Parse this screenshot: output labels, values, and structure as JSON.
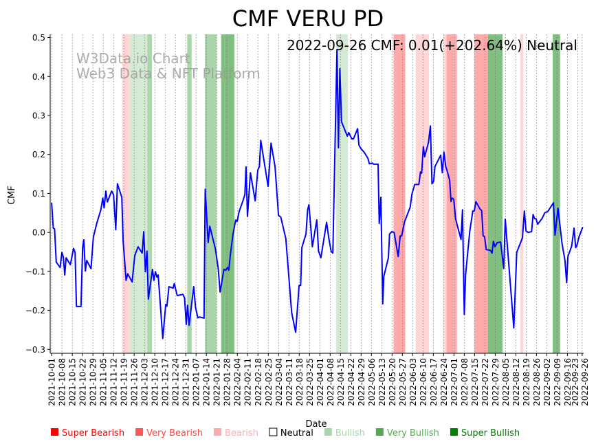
{
  "chart_data": {
    "type": "line",
    "title": "CMF VERU PD",
    "xlabel": "Date",
    "ylabel": "CMF",
    "annotation": "2022-09-26 CMF: 0.01(+202.64%) Neutral",
    "watermark": [
      "W3Data.io Chart",
      "Web3 Data & NFT Platform"
    ],
    "x_unit": "days since 2021-10-01",
    "day0": "2021-10-01",
    "xlim": [
      -1,
      361
    ],
    "ylim": [
      -0.31,
      0.508
    ],
    "yticks": [
      -0.3,
      -0.2,
      -0.1,
      0.0,
      0.1,
      0.2,
      0.3,
      0.4,
      0.5
    ],
    "ytick_labels": [
      "−0.3",
      "−0.2",
      "−0.1",
      "0.0",
      "0.1",
      "0.2",
      "0.3",
      "0.4",
      "0.5"
    ],
    "xtick_labels": [
      "2021-10-01",
      "2021-10-08",
      "2021-10-15",
      "2021-10-22",
      "2021-10-29",
      "2021-11-05",
      "2021-11-12",
      "2021-11-19",
      "2021-11-26",
      "2021-12-03",
      "2021-12-10",
      "2021-12-17",
      "2021-12-24",
      "2021-12-31",
      "2022-01-07",
      "2022-01-14",
      "2022-01-21",
      "2022-01-28",
      "2022-02-04",
      "2022-02-11",
      "2022-02-18",
      "2022-02-25",
      "2022-03-04",
      "2022-03-11",
      "2022-03-18",
      "2022-03-25",
      "2022-04-01",
      "2022-04-08",
      "2022-04-15",
      "2022-04-22",
      "2022-04-29",
      "2022-05-06",
      "2022-05-13",
      "2022-05-20",
      "2022-05-27",
      "2022-06-03",
      "2022-06-10",
      "2022-06-17",
      "2022-06-24",
      "2022-07-01",
      "2022-07-08",
      "2022-07-15",
      "2022-07-22",
      "2022-07-29",
      "2022-08-05",
      "2022-08-12",
      "2022-08-19",
      "2022-08-26",
      "2022-09-02",
      "2022-09-09",
      "2022-09-16",
      "2022-09-23",
      "2022-09-26"
    ],
    "grid": "vertical dotted at x ticks",
    "legend_position": "bottom",
    "legend": [
      {
        "label": "Super Bearish",
        "color": "#ff0000",
        "text_color": "#ff0000"
      },
      {
        "label": "Very Bearish",
        "color": "#ff5555",
        "text_color": "#ff4444"
      },
      {
        "label": "Bearish",
        "color": "#ffaaaa",
        "text_color": "#ffaaaa"
      },
      {
        "label": "Neutral",
        "color": "#ffffff",
        "text_color": "#000000"
      },
      {
        "label": "Bullish",
        "color": "#aad4aa",
        "text_color": "#aad4aa"
      },
      {
        "label": "Very Bullish",
        "color": "#55aa55",
        "text_color": "#55aa55"
      },
      {
        "label": "Super Bullish",
        "color": "#008000",
        "text_color": "#008000"
      }
    ],
    "band_colors": {
      "bearish": "#ffd5d5",
      "very_bearish": "#ffaaaa",
      "bullish": "#d5ead5",
      "very_bullish": "#aad5aa",
      "super_bullish": "#80bf80"
    },
    "bands": [
      {
        "start": 48,
        "end": 53,
        "level": "bearish"
      },
      {
        "start": 53,
        "end": 65,
        "level": "bullish"
      },
      {
        "start": 65,
        "end": 68,
        "level": "very_bullish"
      },
      {
        "start": 92,
        "end": 95,
        "level": "very_bullish"
      },
      {
        "start": 104,
        "end": 112,
        "level": "very_bullish"
      },
      {
        "start": 115,
        "end": 124,
        "level": "super_bullish"
      },
      {
        "start": 193,
        "end": 201,
        "level": "bullish"
      },
      {
        "start": 232,
        "end": 240,
        "level": "very_bearish"
      },
      {
        "start": 247,
        "end": 256,
        "level": "bearish"
      },
      {
        "start": 266,
        "end": 268,
        "level": "bearish"
      },
      {
        "start": 268,
        "end": 275,
        "level": "very_bearish"
      },
      {
        "start": 287,
        "end": 296,
        "level": "very_bearish"
      },
      {
        "start": 296,
        "end": 306,
        "level": "super_bullish"
      },
      {
        "start": 318,
        "end": 320,
        "level": "bearish"
      },
      {
        "start": 340,
        "end": 345,
        "level": "super_bullish"
      }
    ],
    "line_color": "#0000ff",
    "series": [
      {
        "name": "CMF",
        "points": [
          [
            0,
            0.076
          ],
          [
            1.1,
            0.011
          ],
          [
            2.0,
            0.009
          ],
          [
            3.1,
            -0.076
          ],
          [
            5.7,
            -0.09
          ],
          [
            7.0,
            -0.051
          ],
          [
            7.9,
            -0.063
          ],
          [
            8.9,
            -0.109
          ],
          [
            9.8,
            -0.065
          ],
          [
            12.7,
            -0.083
          ],
          [
            14.8,
            -0.041
          ],
          [
            15.9,
            -0.051
          ],
          [
            16.8,
            -0.19
          ],
          [
            19.9,
            -0.19
          ],
          [
            21.0,
            -0.039
          ],
          [
            21.8,
            -0.019
          ],
          [
            22.9,
            -0.099
          ],
          [
            23.8,
            -0.072
          ],
          [
            26.7,
            -0.093
          ],
          [
            28.3,
            -0.012
          ],
          [
            30.6,
            0.023
          ],
          [
            33.4,
            0.058
          ],
          [
            34.7,
            0.088
          ],
          [
            35.6,
            0.063
          ],
          [
            36.8,
            0.106
          ],
          [
            37.8,
            0.078
          ],
          [
            40.7,
            0.106
          ],
          [
            42.0,
            0.097
          ],
          [
            43.5,
            0.007
          ],
          [
            44.6,
            0.125
          ],
          [
            47.6,
            0.09
          ],
          [
            48.5,
            -0.021
          ],
          [
            50.5,
            -0.123
          ],
          [
            51.6,
            -0.106
          ],
          [
            54.6,
            -0.127
          ],
          [
            56.4,
            -0.06
          ],
          [
            58.6,
            -0.037
          ],
          [
            61.4,
            -0.053
          ],
          [
            62.5,
            0.002
          ],
          [
            63.6,
            -0.101
          ],
          [
            64.7,
            -0.048
          ],
          [
            65.6,
            -0.171
          ],
          [
            68.4,
            -0.095
          ],
          [
            69.4,
            -0.123
          ],
          [
            70.4,
            -0.101
          ],
          [
            71.5,
            -0.115
          ],
          [
            72.3,
            -0.109
          ],
          [
            75.4,
            -0.272
          ],
          [
            77.4,
            -0.185
          ],
          [
            78.2,
            -0.189
          ],
          [
            79.6,
            -0.139
          ],
          [
            82.4,
            -0.143
          ],
          [
            83.2,
            -0.131
          ],
          [
            85.2,
            -0.162
          ],
          [
            89.1,
            -0.159
          ],
          [
            90.2,
            -0.168
          ],
          [
            91.3,
            -0.236
          ],
          [
            92.2,
            -0.187
          ],
          [
            93.3,
            -0.238
          ],
          [
            96.4,
            -0.139
          ],
          [
            97.6,
            -0.192
          ],
          [
            99.2,
            -0.219
          ],
          [
            100.3,
            -0.217
          ],
          [
            103.4,
            -0.22
          ],
          [
            104.2,
            0.111
          ],
          [
            106.2,
            -0.026
          ],
          [
            107.3,
            0.016
          ],
          [
            111.1,
            -0.042
          ],
          [
            113.0,
            -0.092
          ],
          [
            114.3,
            -0.153
          ],
          [
            116.9,
            -0.095
          ],
          [
            118.1,
            -0.097
          ],
          [
            119.3,
            -0.09
          ],
          [
            120.2,
            -0.097
          ],
          [
            121.3,
            -0.056
          ],
          [
            123.1,
            -0.004
          ],
          [
            124.9,
            0.032
          ],
          [
            125.9,
            0.028
          ],
          [
            127.2,
            0.053
          ],
          [
            129.8,
            0.081
          ],
          [
            131.1,
            0.097
          ],
          [
            131.9,
            0.168
          ],
          [
            132.9,
            0.041
          ],
          [
            134.9,
            0.153
          ],
          [
            138.1,
            0.081
          ],
          [
            139.9,
            0.16
          ],
          [
            141.0,
            0.169
          ],
          [
            141.9,
            0.236
          ],
          [
            146.9,
            0.118
          ],
          [
            148.9,
            0.229
          ],
          [
            151.6,
            0.169
          ],
          [
            153.9,
            0.044
          ],
          [
            155.5,
            0.039
          ],
          [
            158.9,
            -0.016
          ],
          [
            162.9,
            -0.206
          ],
          [
            165.6,
            -0.256
          ],
          [
            167.9,
            -0.136
          ],
          [
            169.0,
            -0.136
          ],
          [
            169.8,
            -0.039
          ],
          [
            172.6,
            -0.004
          ],
          [
            173.7,
            0.058
          ],
          [
            174.6,
            0.071
          ],
          [
            176.9,
            -0.037
          ],
          [
            179.9,
            0.032
          ],
          [
            181.1,
            -0.048
          ],
          [
            182.7,
            -0.065
          ],
          [
            186.6,
            0.026
          ],
          [
            188.1,
            -0.016
          ],
          [
            189.7,
            -0.049
          ],
          [
            190.8,
            -0.053
          ],
          [
            193.6,
            0.469
          ],
          [
            194.6,
            0.217
          ],
          [
            195.6,
            0.42
          ],
          [
            196.7,
            0.284
          ],
          [
            200.6,
            0.247
          ],
          [
            201.6,
            0.256
          ],
          [
            203.7,
            0.24
          ],
          [
            204.8,
            0.24
          ],
          [
            207.6,
            0.266
          ],
          [
            208.5,
            0.224
          ],
          [
            209.9,
            0.215
          ],
          [
            212.2,
            0.205
          ],
          [
            214.6,
            0.19
          ],
          [
            215.6,
            0.176
          ],
          [
            217.7,
            0.178
          ],
          [
            218.4,
            0.175
          ],
          [
            221.5,
            0.175
          ],
          [
            222.3,
            0.023
          ],
          [
            223.4,
            0.09
          ],
          [
            224.7,
            -0.183
          ],
          [
            225.4,
            -0.113
          ],
          [
            228.5,
            -0.065
          ],
          [
            229.3,
            -0.004
          ],
          [
            230.9,
            0.002
          ],
          [
            232.4,
            0.0
          ],
          [
            235.2,
            -0.062
          ],
          [
            236.5,
            -0.009
          ],
          [
            237.5,
            -0.009
          ],
          [
            239.4,
            0.026
          ],
          [
            243.3,
            0.065
          ],
          [
            244.5,
            0.099
          ],
          [
            246.4,
            0.123
          ],
          [
            249.2,
            0.123
          ],
          [
            250.3,
            0.155
          ],
          [
            251.1,
            0.152
          ],
          [
            252.2,
            0.22
          ],
          [
            253.1,
            0.194
          ],
          [
            255.7,
            0.231
          ],
          [
            257.0,
            0.273
          ],
          [
            258.1,
            0.125
          ],
          [
            259.2,
            0.131
          ],
          [
            260.1,
            0.169
          ],
          [
            264.0,
            0.198
          ],
          [
            265.1,
            0.153
          ],
          [
            266.2,
            0.206
          ],
          [
            267.4,
            0.169
          ],
          [
            268.2,
            0.16
          ],
          [
            270.1,
            0.134
          ],
          [
            271.0,
            0.079
          ],
          [
            271.8,
            0.088
          ],
          [
            272.9,
            0.085
          ],
          [
            274.1,
            0.035
          ],
          [
            277.8,
            -0.018
          ],
          [
            278.8,
            0.058
          ],
          [
            280.0,
            -0.21
          ],
          [
            280.9,
            -0.109
          ],
          [
            283.7,
            0.002
          ],
          [
            285.8,
            0.055
          ],
          [
            286.8,
            0.055
          ],
          [
            287.9,
            0.079
          ],
          [
            290.7,
            0.06
          ],
          [
            291.8,
            0.056
          ],
          [
            292.8,
            -0.009
          ],
          [
            293.8,
            -0.011
          ],
          [
            294.9,
            -0.044
          ],
          [
            297.7,
            -0.046
          ],
          [
            298.8,
            -0.053
          ],
          [
            299.8,
            -0.023
          ],
          [
            300.8,
            -0.037
          ],
          [
            302.4,
            -0.026
          ],
          [
            304.7,
            -0.025
          ],
          [
            306.8,
            -0.093
          ],
          [
            307.8,
            0.034
          ],
          [
            313.6,
            -0.245
          ],
          [
            315.6,
            -0.051
          ],
          [
            319.5,
            -0.014
          ],
          [
            320.8,
            0.055
          ],
          [
            321.9,
            0.004
          ],
          [
            323.4,
            0.0
          ],
          [
            325.7,
            0.002
          ],
          [
            326.7,
            0.046
          ],
          [
            327.8,
            0.035
          ],
          [
            328.7,
            0.035
          ],
          [
            329.8,
            0.021
          ],
          [
            332.7,
            0.035
          ],
          [
            334.8,
            0.051
          ],
          [
            336.6,
            0.053
          ],
          [
            340.5,
            0.076
          ],
          [
            341.6,
            -0.007
          ],
          [
            343.6,
            0.062
          ],
          [
            346.4,
            -0.03
          ],
          [
            348.3,
            -0.071
          ],
          [
            349.5,
            -0.129
          ],
          [
            350.3,
            -0.062
          ],
          [
            352.9,
            -0.035
          ],
          [
            354.5,
            0.011
          ],
          [
            355.6,
            -0.039
          ],
          [
            356.4,
            -0.034
          ],
          [
            357.9,
            -0.011
          ],
          [
            360.4,
            0.014
          ]
        ]
      }
    ]
  }
}
